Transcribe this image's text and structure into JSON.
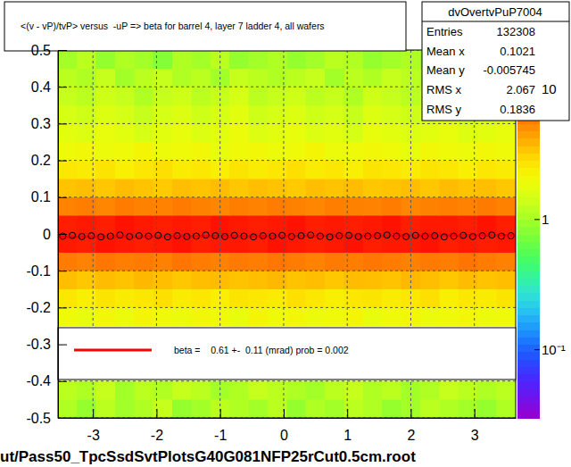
{
  "chart_data": {
    "type": "heatmap",
    "title": "<(v - vP)/tvP> versus  -uP => beta for barrel 4, layer 7 ladder 4, all wafers",
    "caption": "ut/Pass50_TpcSsdSvtPlotsG40G081NFP25rCut0.5cm.root",
    "xlim": [
      -3.55,
      3.65
    ],
    "xticks": [
      -3,
      -2,
      -1,
      0,
      1,
      2,
      3
    ],
    "ylim": [
      -0.5,
      0.5
    ],
    "yticks": [
      -0.5,
      -0.4,
      -0.3,
      -0.2,
      -0.1,
      0,
      0.1,
      0.2,
      0.3,
      0.4,
      0.5
    ],
    "grid": true,
    "legend": "bottom",
    "x_bins": [
      -3.55,
      -3.25,
      -2.95,
      -2.65,
      -2.35,
      -2.05,
      -1.75,
      -1.45,
      -1.15,
      -0.85,
      -0.55,
      -0.25,
      0.05,
      0.35,
      0.65,
      0.95,
      1.25,
      1.55,
      1.85,
      2.15,
      2.45,
      2.75,
      3.05,
      3.35,
      3.65
    ],
    "y_bins": [
      -0.5,
      -0.45,
      -0.4,
      -0.35,
      -0.3,
      -0.25,
      -0.2,
      -0.15,
      -0.1,
      -0.05,
      0,
      0.05,
      0.1,
      0.15,
      0.2,
      0.25,
      0.3,
      0.35,
      0.4,
      0.45,
      0.5
    ],
    "cells": [
      [
        1.1,
        0.9,
        1.2,
        1.0,
        1.1,
        1.3,
        0.9,
        1.0,
        1.2,
        1.1,
        1.0,
        1.2,
        0.9,
        1.1,
        1.0,
        1.2,
        1.1,
        0.9,
        1.0,
        1.2,
        1.1,
        1.0,
        0.9,
        1.1
      ],
      [
        1.2,
        1.1,
        1.3,
        1.0,
        1.2,
        1.1,
        1.3,
        1.2,
        1.0,
        1.1,
        1.3,
        1.2,
        1.1,
        1.0,
        1.2,
        1.3,
        1.1,
        1.2,
        1.0,
        1.1,
        1.3,
        1.2,
        1.1,
        1.2
      ],
      [
        null,
        null,
        null,
        null,
        null,
        null,
        null,
        null,
        null,
        null,
        null,
        null,
        null,
        null,
        null,
        null,
        null,
        null,
        null,
        null,
        null,
        null,
        null,
        null
      ],
      [
        null,
        null,
        null,
        null,
        null,
        null,
        null,
        null,
        null,
        null,
        null,
        null,
        null,
        null,
        null,
        null,
        null,
        null,
        null,
        null,
        null,
        null,
        null,
        null
      ],
      [
        null,
        null,
        null,
        null,
        null,
        null,
        null,
        null,
        null,
        null,
        null,
        null,
        null,
        null,
        null,
        null,
        null,
        null,
        null,
        null,
        null,
        null,
        null,
        null
      ],
      [
        2.0,
        1.8,
        2.1,
        1.9,
        2.2,
        2.0,
        1.9,
        2.1,
        2.0,
        1.8,
        2.2,
        2.0,
        2.1,
        1.9,
        2.0,
        2.2,
        1.8,
        2.0,
        2.1,
        1.9,
        2.0,
        2.1,
        1.9,
        2.0
      ],
      [
        2.6,
        2.4,
        2.7,
        2.5,
        2.6,
        2.8,
        2.5,
        2.6,
        2.4,
        2.7,
        2.6,
        2.5,
        2.8,
        2.6,
        2.4,
        2.6,
        2.7,
        2.5,
        2.6,
        2.8,
        2.4,
        2.6,
        2.5,
        2.7
      ],
      [
        3.6,
        3.4,
        3.7,
        3.5,
        3.8,
        3.6,
        3.4,
        3.6,
        3.7,
        3.5,
        3.6,
        3.8,
        3.5,
        3.6,
        3.4,
        3.7,
        3.6,
        3.5,
        3.8,
        3.6,
        3.4,
        3.7,
        3.5,
        3.6
      ],
      [
        5.8,
        5.5,
        6.0,
        5.7,
        5.9,
        5.6,
        6.1,
        5.8,
        5.6,
        5.9,
        5.7,
        6.0,
        5.8,
        5.5,
        5.9,
        5.7,
        6.0,
        5.8,
        5.6,
        5.9,
        5.7,
        6.1,
        5.8,
        5.6
      ],
      [
        13,
        12,
        14,
        13,
        12,
        13,
        14,
        12,
        13,
        13,
        12,
        14,
        13,
        12,
        13,
        14,
        12,
        13,
        13,
        14,
        12,
        13,
        12,
        13
      ],
      [
        12,
        13,
        12,
        14,
        13,
        12,
        13,
        12,
        14,
        13,
        12,
        13,
        14,
        12,
        13,
        12,
        13,
        14,
        12,
        13,
        13,
        12,
        14,
        12
      ],
      [
        5.5,
        5.7,
        5.4,
        5.8,
        5.6,
        5.5,
        5.9,
        5.6,
        5.4,
        5.7,
        5.5,
        5.8,
        5.6,
        5.4,
        5.7,
        5.6,
        5.5,
        5.8,
        5.4,
        5.6,
        5.7,
        5.5,
        5.9,
        5.6
      ],
      [
        3.5,
        3.6,
        3.4,
        3.7,
        3.5,
        3.3,
        3.6,
        3.5,
        3.7,
        3.4,
        3.6,
        3.5,
        3.3,
        3.6,
        3.5,
        3.7,
        3.4,
        3.5,
        3.6,
        3.4,
        3.7,
        3.5,
        3.6,
        3.4
      ],
      [
        2.6,
        2.5,
        2.7,
        2.4,
        2.6,
        2.8,
        2.5,
        2.6,
        2.4,
        2.7,
        2.5,
        2.6,
        2.8,
        2.5,
        2.6,
        2.4,
        2.7,
        2.6,
        2.5,
        2.7,
        2.6,
        2.4,
        2.6,
        2.5
      ],
      [
        2.0,
        2.1,
        1.9,
        2.0,
        2.2,
        1.9,
        2.0,
        2.1,
        1.8,
        2.0,
        2.1,
        1.9,
        2.0,
        2.2,
        1.9,
        2.0,
        2.1,
        2.0,
        1.8,
        2.1,
        2.0,
        1.9,
        2.1,
        2.0
      ],
      [
        1.7,
        1.6,
        1.8,
        1.7,
        1.5,
        1.7,
        1.8,
        1.6,
        1.7,
        1.9,
        1.6,
        1.7,
        1.8,
        1.6,
        1.7,
        1.5,
        1.8,
        1.7,
        1.6,
        1.7,
        1.8,
        1.6,
        1.7,
        1.8
      ],
      [
        1.5,
        1.4,
        1.6,
        1.5,
        1.3,
        1.5,
        1.6,
        1.4,
        1.5,
        1.7,
        1.4,
        1.5,
        1.6,
        1.4,
        1.5,
        1.3,
        1.6,
        1.5,
        1.4,
        1.5,
        1.6,
        1.4,
        1.5,
        1.6
      ],
      [
        1.3,
        1.2,
        1.4,
        1.3,
        1.1,
        1.3,
        1.4,
        1.2,
        1.3,
        1.5,
        1.2,
        1.3,
        1.4,
        1.2,
        1.3,
        1.1,
        1.4,
        1.3,
        1.2,
        1.3,
        1.4,
        1.2,
        1.3,
        1.4
      ],
      [
        1.2,
        1.1,
        1.3,
        1.0,
        1.2,
        1.3,
        1.1,
        1.2,
        1.0,
        1.3,
        1.2,
        1.1,
        1.2,
        1.3,
        1.0,
        1.2,
        1.1,
        1.3,
        1.2,
        1.0,
        1.2,
        1.1,
        1.3,
        1.2
      ],
      [
        1.0,
        1.2,
        0.9,
        1.1,
        1.0,
        0.8,
        1.1,
        1.0,
        1.2,
        0.9,
        1.0,
        1.1,
        0.9,
        1.0,
        1.2,
        1.1,
        0.9,
        1.0,
        1.1,
        0.8,
        1.0,
        1.2,
        1.0,
        1.1
      ]
    ],
    "colorbar": {
      "range": [
        0.03,
        20
      ],
      "ticks": [
        {
          "value": 0.1,
          "label": "10⁻¹"
        },
        1,
        10
      ],
      "log": true
    },
    "series": [
      {
        "type": "scatter",
        "marker": "circle",
        "color": "#000000",
        "x": [
          -3.475,
          -3.325,
          -3.175,
          -3.025,
          -2.875,
          -2.725,
          -2.575,
          -2.425,
          -2.275,
          -2.125,
          -1.975,
          -1.825,
          -1.675,
          -1.525,
          -1.375,
          -1.225,
          -1.075,
          -0.925,
          -0.775,
          -0.625,
          -0.475,
          -0.325,
          -0.175,
          -0.025,
          0.125,
          0.275,
          0.425,
          0.575,
          0.725,
          0.875,
          1.025,
          1.175,
          1.325,
          1.475,
          1.625,
          1.775,
          1.925,
          2.075,
          2.225,
          2.375,
          2.525,
          2.675,
          2.825,
          2.975,
          3.125,
          3.275,
          3.425,
          3.575
        ],
        "values": [
          -0.006,
          -0.004,
          -0.007,
          -0.005,
          -0.008,
          -0.006,
          -0.003,
          -0.007,
          -0.005,
          -0.006,
          -0.004,
          -0.008,
          -0.005,
          -0.007,
          -0.006,
          -0.003,
          -0.005,
          -0.007,
          -0.004,
          -0.006,
          -0.008,
          -0.005,
          -0.006,
          -0.004,
          -0.007,
          -0.005,
          -0.003,
          -0.006,
          -0.008,
          -0.005,
          -0.004,
          -0.007,
          -0.006,
          -0.005,
          -0.003,
          -0.006,
          -0.007,
          -0.004,
          -0.006,
          -0.005,
          -0.008,
          -0.006,
          -0.004,
          -0.007,
          -0.005,
          -0.003,
          -0.006,
          -0.005
        ]
      },
      {
        "type": "line",
        "name": "beta =    0.61 +-  0.11 (mrad) prob = 0.002",
        "color": "#ff0000",
        "line_style": "solid",
        "x": [
          -3.55,
          3.65
        ],
        "values": [
          -0.008,
          -0.0036
        ]
      }
    ],
    "stats": {
      "title": "dvOvertvPuP7004",
      "entries": [
        {
          "label": "Entries",
          "value": 132308
        },
        {
          "label": "Mean x",
          "value": 0.1021
        },
        {
          "label": "Mean y",
          "value": -0.005745
        },
        {
          "label": "RMS x",
          "value": 2.067
        },
        {
          "label": "RMS y",
          "value": 0.1836
        }
      ]
    }
  }
}
